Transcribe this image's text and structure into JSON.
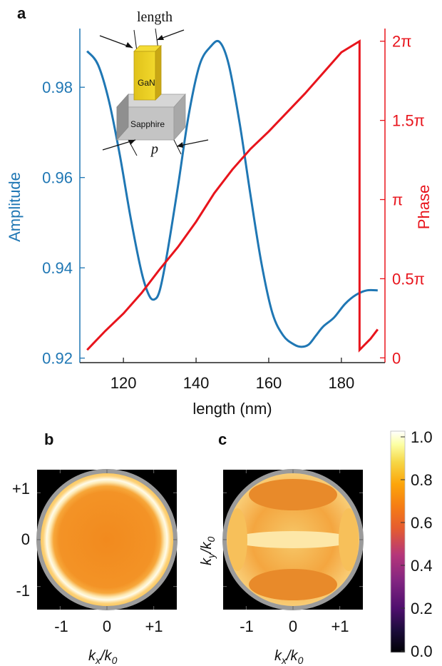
{
  "panels": {
    "a": "a",
    "b": "b",
    "c": "c"
  },
  "colors": {
    "amplitude": "#1f77b4",
    "phase": "#e8141c"
  },
  "chart_data": [
    {
      "type": "line",
      "panel": "a",
      "xlabel": "length (nm)",
      "ylabel_left": "Amplitude",
      "ylabel_right": "Phase",
      "xlim": [
        108,
        192
      ],
      "ylim_left": [
        0.919,
        0.993
      ],
      "ylim_right_pi": [
        -0.03,
        2.08
      ],
      "x_ticks": [
        120,
        140,
        160,
        180
      ],
      "x_tick_labels": [
        "120",
        "140",
        "160",
        "180"
      ],
      "y_left_ticks": [
        0.92,
        0.94,
        0.96,
        0.98
      ],
      "y_left_tick_labels": [
        "0.92",
        "0.94",
        "0.96",
        "0.98"
      ],
      "y_right_ticks": [
        0,
        0.5,
        1,
        1.5,
        2
      ],
      "y_right_tick_labels": [
        "0",
        "0.5π",
        "π",
        "1.5π",
        "2π"
      ],
      "series": [
        {
          "name": "Amplitude",
          "axis": "left",
          "color": "#1f77b4",
          "x": [
            110,
            113,
            116,
            119,
            122,
            125,
            127,
            128.5,
            130,
            132,
            135,
            138,
            141,
            144,
            146.5,
            149,
            152,
            155,
            158,
            161,
            164,
            167,
            169,
            171,
            173,
            175,
            178,
            181,
            184,
            187,
            190
          ],
          "y": [
            0.988,
            0.985,
            0.977,
            0.965,
            0.951,
            0.939,
            0.934,
            0.933,
            0.935,
            0.943,
            0.958,
            0.974,
            0.985,
            0.989,
            0.99,
            0.985,
            0.972,
            0.956,
            0.941,
            0.93,
            0.925,
            0.923,
            0.9225,
            0.923,
            0.925,
            0.927,
            0.929,
            0.932,
            0.934,
            0.935,
            0.935
          ]
        },
        {
          "name": "Phase",
          "axis": "right",
          "color": "#e8141c",
          "x": [
            110,
            115,
            120,
            125,
            130,
            135,
            140,
            145,
            150,
            155,
            160,
            165,
            170,
            175,
            180,
            185,
            185,
            188,
            190
          ],
          "y_pi": [
            0.05,
            0.17,
            0.28,
            0.41,
            0.56,
            0.7,
            0.86,
            1.04,
            1.19,
            1.32,
            1.43,
            1.55,
            1.67,
            1.8,
            1.93,
            2.0,
            0.05,
            0.12,
            0.18
          ]
        }
      ]
    },
    {
      "type": "heatmap",
      "panel": "b",
      "xlabel": "k_x/k_0",
      "x_tick_labels": [
        "-1",
        "0",
        "+1"
      ],
      "y_tick_labels": [
        "+1",
        "0",
        "-1"
      ]
    },
    {
      "type": "heatmap",
      "panel": "c",
      "xlabel": "k_x/k_0",
      "ylabel": "k_y/k_0",
      "x_tick_labels": [
        "-1",
        "0",
        "+1"
      ]
    },
    {
      "type": "colorbar",
      "range": [
        0.0,
        1.0
      ],
      "tick_labels": [
        "1.0",
        "0.8",
        "0.6",
        "0.4",
        "0.2",
        "0.0"
      ],
      "colormap": [
        "#000004",
        "#1c0c3b",
        "#4f0f6e",
        "#812581",
        "#b5367a",
        "#e55c30",
        "#f57d15",
        "#fca50a",
        "#f6d746",
        "#fcffa4",
        "#ffffff"
      ]
    }
  ],
  "inset": {
    "length_label": "length",
    "gan_label": "GaN",
    "sapphire_label": "Sapphire",
    "p_label": "p"
  }
}
